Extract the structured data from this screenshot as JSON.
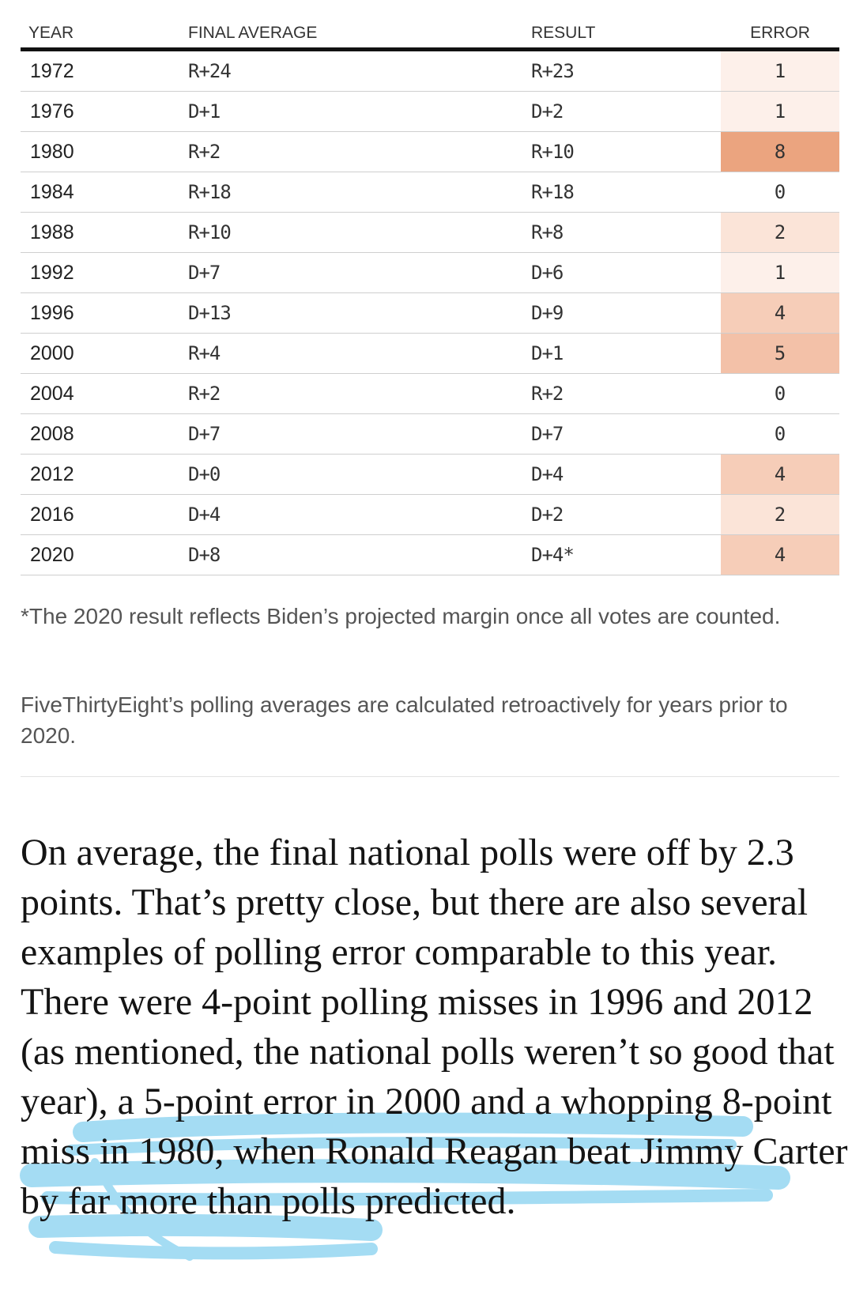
{
  "table": {
    "headers": {
      "year": "YEAR",
      "final_average": "FINAL AVERAGE",
      "result": "RESULT",
      "error": "ERROR"
    },
    "rows": [
      {
        "year": "1972",
        "final_average": "R+24",
        "result": "R+23",
        "error": "1"
      },
      {
        "year": "1976",
        "final_average": "D+1",
        "result": "D+2",
        "error": "1"
      },
      {
        "year": "1980",
        "final_average": "R+2",
        "result": "R+10",
        "error": "8"
      },
      {
        "year": "1984",
        "final_average": "R+18",
        "result": "R+18",
        "error": "0"
      },
      {
        "year": "1988",
        "final_average": "R+10",
        "result": "R+8",
        "error": "2"
      },
      {
        "year": "1992",
        "final_average": "D+7",
        "result": "D+6",
        "error": "1"
      },
      {
        "year": "1996",
        "final_average": "D+13",
        "result": "D+9",
        "error": "4"
      },
      {
        "year": "2000",
        "final_average": "R+4",
        "result": "D+1",
        "error": "5"
      },
      {
        "year": "2004",
        "final_average": "R+2",
        "result": "R+2",
        "error": "0"
      },
      {
        "year": "2008",
        "final_average": "D+7",
        "result": "D+7",
        "error": "0"
      },
      {
        "year": "2012",
        "final_average": "D+0",
        "result": "D+4",
        "error": "4"
      },
      {
        "year": "2016",
        "final_average": "D+4",
        "result": "D+2",
        "error": "2"
      },
      {
        "year": "2020",
        "final_average": "D+8",
        "result": "D+4*",
        "error": "4"
      }
    ],
    "error_colors": {
      "0": "#ffffff",
      "1": "#fdf0ea",
      "2": "#fbe4d8",
      "4": "#f6cdb8",
      "5": "#f3c1a8",
      "8": "#eba47f"
    }
  },
  "notes": {
    "footnote": "*The 2020 result reflects Biden’s projected margin once all votes are counted.",
    "source": "FiveThirtyEight’s polling averages are calculated retroactively for years prior to 2020."
  },
  "article": {
    "before_highlight": "On average, the final national polls were off by 2.3 points. That’s pretty close, but there are also several examples of polling error comparable to this year. There were 4-point polling misses in 1996 and 2012 (as mentioned, the national polls weren’t so good that year), a 5-point error in 2000 and ",
    "highlighted": "a whopping 8-point miss in 1980, when Ronald Reagan beat Jimmy Carter by far more than polls predicted."
  },
  "highlight_color": "#5bc0eb"
}
